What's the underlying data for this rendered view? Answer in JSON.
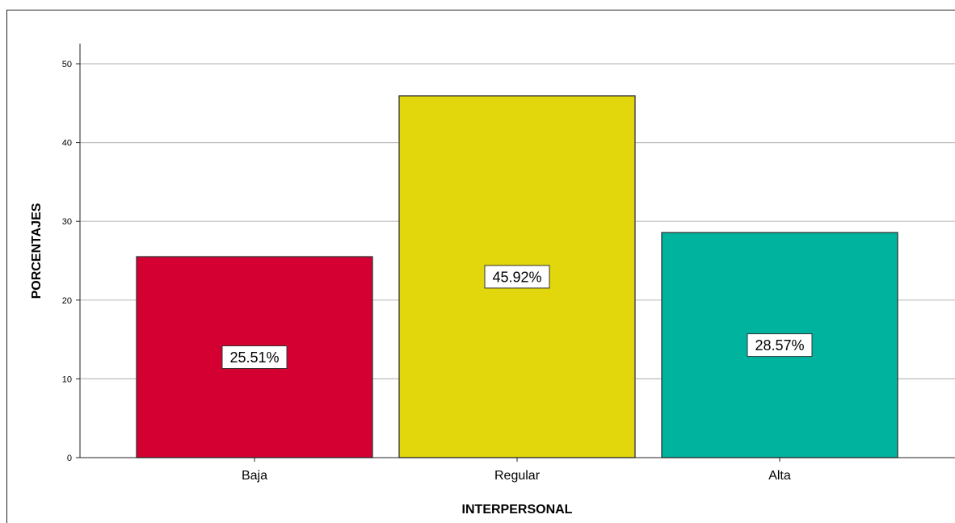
{
  "chart_data": {
    "type": "bar",
    "categories": [
      "Baja",
      "Regular",
      "Alta"
    ],
    "values": [
      25.51,
      45.92,
      28.57
    ],
    "data_labels": [
      "25.51%",
      "45.92%",
      "28.57%"
    ],
    "colors": [
      "#d50032",
      "#e2d60c",
      "#00b39f"
    ],
    "title": "",
    "xlabel": "INTERPERSONAL",
    "ylabel": "PORCENTAJES",
    "ylim": [
      0,
      52
    ],
    "yticks": [
      0,
      10,
      20,
      30,
      40,
      50
    ],
    "ytick_labels": [
      "0",
      "10",
      "20",
      "30",
      "40",
      "50"
    ],
    "grid": true,
    "legend": "none"
  }
}
